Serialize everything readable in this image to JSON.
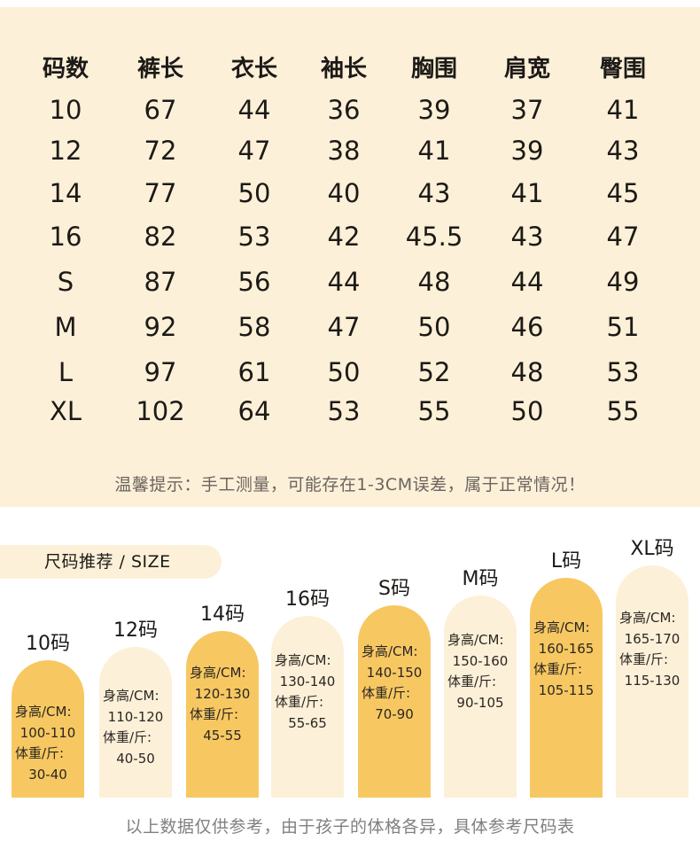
{
  "size_table": {
    "headers": [
      "码数",
      "裤长",
      "衣长",
      "袖长",
      "胸围",
      "肩宽",
      "臀围"
    ],
    "rows": [
      [
        "10",
        "67",
        "44",
        "36",
        "39",
        "37",
        "41"
      ],
      [
        "12",
        "72",
        "47",
        "38",
        "41",
        "39",
        "43"
      ],
      [
        "14",
        "77",
        "50",
        "40",
        "43",
        "41",
        "45"
      ],
      [
        "16",
        "82",
        "53",
        "42",
        "45.5",
        "43",
        "47"
      ],
      [
        "S",
        "87",
        "56",
        "44",
        "48",
        "44",
        "49"
      ],
      [
        "M",
        "92",
        "58",
        "47",
        "50",
        "46",
        "51"
      ],
      [
        "L",
        "97",
        "61",
        "50",
        "52",
        "48",
        "53"
      ],
      [
        "XL",
        "102",
        "64",
        "53",
        "55",
        "50",
        "55"
      ]
    ],
    "note": "温馨提示：手工测量，可能存在1-3CM误差，属于正常情况！"
  },
  "recommend": {
    "title": "尺码推荐 / SIZE",
    "height_label": "身高/CM:",
    "weight_label": "体重/斤:",
    "sizes": [
      {
        "name": "10码",
        "height": "100-110",
        "weight": "30-40",
        "style": "gold"
      },
      {
        "name": "12码",
        "height": "110-120",
        "weight": "40-50",
        "style": "cream"
      },
      {
        "name": "14码",
        "height": "120-130",
        "weight": "45-55",
        "style": "gold"
      },
      {
        "name": "16码",
        "height": "130-140",
        "weight": "55-65",
        "style": "cream"
      },
      {
        "name": "S码",
        "height": "140-150",
        "weight": "70-90",
        "style": "gold"
      },
      {
        "name": "M码",
        "height": "150-160",
        "weight": "90-105",
        "style": "cream"
      },
      {
        "name": "L码",
        "height": "160-165",
        "weight": "105-115",
        "style": "gold"
      },
      {
        "name": "XL码",
        "height": "165-170",
        "weight": "115-130",
        "style": "cream"
      }
    ],
    "footer": "以上数据仅供参考，由于孩子的体格各异，具体参考尺码表"
  },
  "colors": {
    "panel_bg": "#fdf0d8",
    "gold": "#f7c862",
    "cream": "#fdf0d8",
    "note_text": "#6b6560",
    "footer_text": "#808080"
  }
}
